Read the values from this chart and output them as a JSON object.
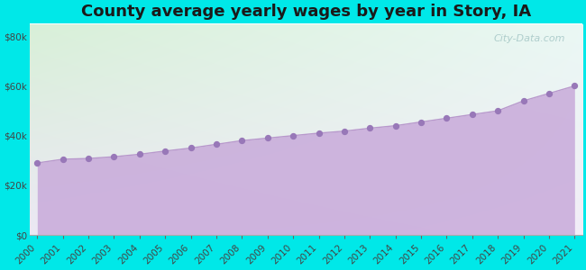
{
  "title": "County average yearly wages by year in Story, IA",
  "years": [
    2000,
    2001,
    2002,
    2003,
    2004,
    2005,
    2006,
    2007,
    2008,
    2009,
    2010,
    2011,
    2012,
    2013,
    2014,
    2015,
    2016,
    2017,
    2018,
    2019,
    2020,
    2021
  ],
  "wages": [
    29000,
    30500,
    30800,
    31500,
    32500,
    33800,
    35000,
    36500,
    38000,
    39000,
    40000,
    41000,
    41800,
    43000,
    44000,
    45500,
    47000,
    48500,
    50000,
    54000,
    57000,
    60000
  ],
  "line_color": "#b898cc",
  "fill_color_top": "#c8aada",
  "fill_color_bottom": "#ddc8ee",
  "fill_alpha": 0.85,
  "marker_color": "#9878b8",
  "marker_size": 18,
  "bg_outer": "#00e8e8",
  "bg_plot_topleft": "#d8f0d8",
  "bg_plot_topright": "#e8f8f0",
  "bg_plot_bottom": "#e8e0f0",
  "yticks": [
    0,
    20000,
    40000,
    60000,
    80000
  ],
  "ylim": [
    0,
    85000
  ],
  "watermark": "City-Data.com",
  "title_fontsize": 13,
  "tick_fontsize": 7.5
}
